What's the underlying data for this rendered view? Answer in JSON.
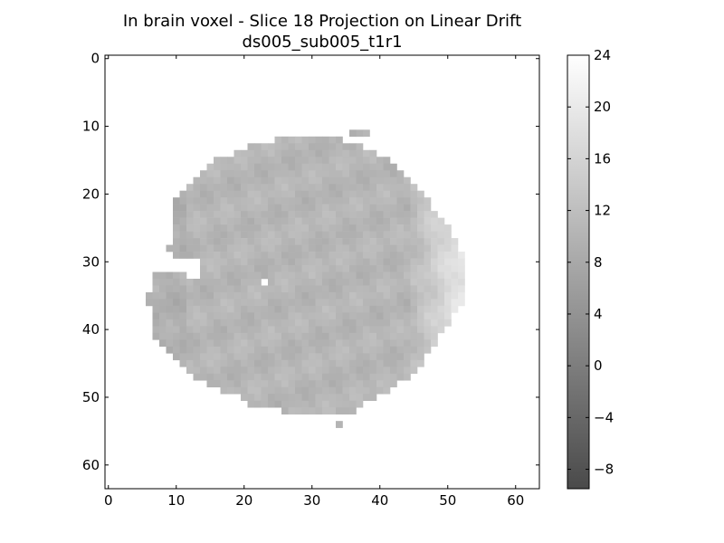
{
  "chart_data": {
    "type": "heatmap",
    "title": "In brain voxel - Slice 18 Projection on Linear Drift",
    "subtitle": "ds005_sub005_t1r1",
    "xlabel": "",
    "ylabel": "",
    "x_range": [
      -0.5,
      63.5
    ],
    "y_range": [
      -0.5,
      63.5
    ],
    "y_inverted": true,
    "x_ticks": [
      0,
      10,
      20,
      30,
      40,
      50,
      60
    ],
    "y_ticks": [
      0,
      10,
      20,
      30,
      40,
      50,
      60
    ],
    "x_tick_labels": [
      "0",
      "10",
      "20",
      "30",
      "40",
      "50",
      "60"
    ],
    "y_tick_labels": [
      "0",
      "10",
      "20",
      "30",
      "40",
      "50",
      "60"
    ],
    "grid": false,
    "colormap": "gray",
    "colorbar": {
      "range": [
        -9.5,
        24
      ],
      "ticks": [
        -8,
        -4,
        0,
        4,
        8,
        12,
        16,
        20,
        24
      ],
      "tick_labels": [
        "−8",
        "−4",
        "0",
        "4",
        "8",
        "12",
        "16",
        "20",
        "24"
      ]
    },
    "background_value": null,
    "brain_mask": {
      "rows": [
        {
          "row": 11,
          "segments": [
            [
              36,
              38
            ]
          ]
        },
        {
          "row": 12,
          "segments": [
            [
              25,
              34
            ]
          ]
        },
        {
          "row": 13,
          "segments": [
            [
              21,
              37
            ]
          ]
        },
        {
          "row": 14,
          "segments": [
            [
              19,
              39
            ]
          ]
        },
        {
          "row": 15,
          "segments": [
            [
              16,
              41
            ]
          ]
        },
        {
          "row": 16,
          "segments": [
            [
              15,
              42
            ]
          ]
        },
        {
          "row": 17,
          "segments": [
            [
              14,
              43
            ]
          ]
        },
        {
          "row": 18,
          "segments": [
            [
              13,
              44
            ]
          ]
        },
        {
          "row": 19,
          "segments": [
            [
              12,
              45
            ]
          ]
        },
        {
          "row": 20,
          "segments": [
            [
              11,
              46
            ]
          ]
        },
        {
          "row": 21,
          "segments": [
            [
              10,
              47
            ]
          ]
        },
        {
          "row": 22,
          "segments": [
            [
              10,
              47
            ]
          ]
        },
        {
          "row": 23,
          "segments": [
            [
              10,
              48
            ]
          ]
        },
        {
          "row": 24,
          "segments": [
            [
              10,
              49
            ]
          ]
        },
        {
          "row": 25,
          "segments": [
            [
              10,
              50
            ]
          ]
        },
        {
          "row": 26,
          "segments": [
            [
              10,
              50
            ]
          ]
        },
        {
          "row": 27,
          "segments": [
            [
              10,
              51
            ]
          ]
        },
        {
          "row": 28,
          "segments": [
            [
              9,
              51
            ]
          ]
        },
        {
          "row": 29,
          "segments": [
            [
              10,
              52
            ]
          ]
        },
        {
          "row": 30,
          "segments": [
            [
              14,
              52
            ]
          ]
        },
        {
          "row": 31,
          "segments": [
            [
              14,
              52
            ]
          ]
        },
        {
          "row": 32,
          "segments": [
            [
              7,
              11
            ],
            [
              14,
              52
            ]
          ]
        },
        {
          "row": 33,
          "segments": [
            [
              7,
              22
            ],
            [
              24,
              52
            ]
          ]
        },
        {
          "row": 34,
          "segments": [
            [
              7,
              52
            ]
          ]
        },
        {
          "row": 35,
          "segments": [
            [
              6,
              52
            ]
          ]
        },
        {
          "row": 36,
          "segments": [
            [
              6,
              52
            ]
          ]
        },
        {
          "row": 37,
          "segments": [
            [
              7,
              51
            ]
          ]
        },
        {
          "row": 38,
          "segments": [
            [
              7,
              50
            ]
          ]
        },
        {
          "row": 39,
          "segments": [
            [
              7,
              50
            ]
          ]
        },
        {
          "row": 40,
          "segments": [
            [
              7,
              49
            ]
          ]
        },
        {
          "row": 41,
          "segments": [
            [
              7,
              48
            ]
          ]
        },
        {
          "row": 42,
          "segments": [
            [
              8,
              48
            ]
          ]
        },
        {
          "row": 43,
          "segments": [
            [
              9,
              47
            ]
          ]
        },
        {
          "row": 44,
          "segments": [
            [
              10,
              46
            ]
          ]
        },
        {
          "row": 45,
          "segments": [
            [
              11,
              46
            ]
          ]
        },
        {
          "row": 46,
          "segments": [
            [
              12,
              45
            ]
          ]
        },
        {
          "row": 47,
          "segments": [
            [
              13,
              44
            ]
          ]
        },
        {
          "row": 48,
          "segments": [
            [
              15,
              42
            ]
          ]
        },
        {
          "row": 49,
          "segments": [
            [
              17,
              41
            ]
          ]
        },
        {
          "row": 50,
          "segments": [
            [
              20,
              39
            ]
          ]
        },
        {
          "row": 51,
          "segments": [
            [
              21,
              37
            ]
          ]
        },
        {
          "row": 52,
          "segments": [
            [
              26,
              36
            ]
          ]
        },
        {
          "row": 54,
          "segments": [
            [
              34,
              34
            ]
          ]
        }
      ]
    },
    "approx_value_range_in_mask": [
      6,
      20
    ]
  }
}
